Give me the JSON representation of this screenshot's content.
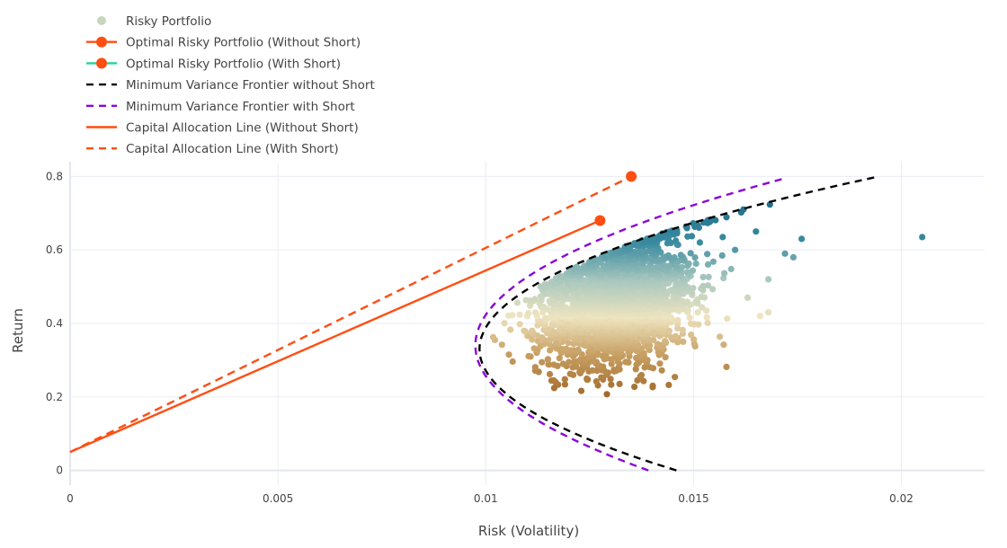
{
  "chart_data": {
    "type": "scatter",
    "xlabel": "Risk (Volatility)",
    "ylabel": "Return",
    "xlim": [
      0,
      0.022
    ],
    "ylim": [
      -0.04,
      0.84
    ],
    "x_ticks": [
      {
        "value": 0,
        "label": "0"
      },
      {
        "value": 0.005,
        "label": "0.005"
      },
      {
        "value": 0.01,
        "label": "0.01"
      },
      {
        "value": 0.015,
        "label": "0.015"
      },
      {
        "value": 0.02,
        "label": "0.02"
      }
    ],
    "y_ticks": [
      {
        "value": 0,
        "label": "0"
      },
      {
        "value": 0.2,
        "label": "0.2"
      },
      {
        "value": 0.4,
        "label": "0.4"
      },
      {
        "value": 0.6,
        "label": "0.6"
      },
      {
        "value": 0.8,
        "label": "0.8"
      }
    ],
    "grid": true,
    "legend_position": "top-left",
    "colors": {
      "orange": "#ff4e12",
      "teal": "#1ed69a",
      "black": "#000000",
      "purple": "#8a07d6",
      "grid": "#e9ecf4"
    },
    "legend": [
      {
        "name": "Risky Portfolio",
        "kind": "marker"
      },
      {
        "name": "Optimal Risky Portfolio (Without Short)",
        "kind": "line-marker"
      },
      {
        "name": "Optimal Risky Portfolio (With Short)",
        "kind": "line-marker-teal"
      },
      {
        "name": "Minimum Variance Frontier without Short",
        "kind": "dash-black"
      },
      {
        "name": "Minimum Variance Frontier with Short",
        "kind": "dash-purple"
      },
      {
        "name": "Capital Allocation Line (Without Short)",
        "kind": "solid-orange"
      },
      {
        "name": "Capital Allocation Line (With Short)",
        "kind": "dash-orange"
      }
    ],
    "optimal_without_short": {
      "x": 0.01275,
      "y": 0.68
    },
    "optimal_with_short": {
      "x": 0.0135,
      "y": 0.8
    },
    "cal_without_short": [
      [
        0,
        0.05
      ],
      [
        0.01275,
        0.68
      ]
    ],
    "cal_with_short": [
      [
        0,
        0.05
      ],
      [
        0.0135,
        0.8
      ]
    ],
    "mvf_without_short": {
      "min_risk": 0.00985,
      "min_return": 0.33,
      "curve": 0.000435,
      "y_from": 0.0,
      "y_to": 0.8
    },
    "mvf_with_short": {
      "min_risk": 0.00975,
      "min_return": 0.34,
      "curve": 0.00036,
      "y_from": 0.0,
      "y_to": 0.8
    },
    "risky_cloud": {
      "count": 2600,
      "risk_mean": 0.0131,
      "risk_sd": 0.00085,
      "return_mean": 0.45,
      "return_sd": 0.085,
      "return_range": [
        0.2,
        0.73
      ],
      "outliers": [
        [
          0.0205,
          0.635
        ],
        [
          0.0176,
          0.63
        ],
        [
          0.0172,
          0.59
        ],
        [
          0.0174,
          0.58
        ],
        [
          0.0162,
          0.71
        ],
        [
          0.0165,
          0.65
        ],
        [
          0.0168,
          0.43
        ],
        [
          0.0166,
          0.42
        ],
        [
          0.0157,
          0.635
        ],
        [
          0.016,
          0.6
        ],
        [
          0.0163,
          0.47
        ],
        [
          0.0168,
          0.52
        ]
      ]
    }
  }
}
